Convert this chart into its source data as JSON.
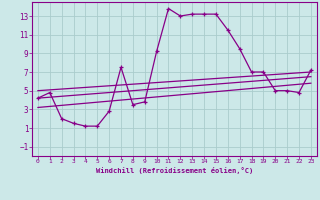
{
  "xlabel": "Windchill (Refroidissement éolien,°C)",
  "background_color": "#cce8e8",
  "grid_color": "#aacccc",
  "line_color": "#880088",
  "xlim": [
    -0.5,
    23.5
  ],
  "ylim": [
    -2.0,
    14.5
  ],
  "xticks": [
    0,
    1,
    2,
    3,
    4,
    5,
    6,
    7,
    8,
    9,
    10,
    11,
    12,
    13,
    14,
    15,
    16,
    17,
    18,
    19,
    20,
    21,
    22,
    23
  ],
  "yticks": [
    -1,
    1,
    3,
    5,
    7,
    9,
    11,
    13
  ],
  "main_x": [
    0,
    1,
    2,
    3,
    4,
    5,
    6,
    7,
    8,
    9,
    10,
    11,
    12,
    13,
    14,
    15,
    16,
    17,
    18,
    19,
    20,
    21,
    22,
    23
  ],
  "main_y": [
    4.2,
    4.8,
    2.0,
    1.5,
    1.2,
    1.2,
    2.8,
    7.5,
    3.5,
    3.8,
    9.2,
    13.8,
    13.0,
    13.2,
    13.2,
    13.2,
    11.5,
    9.5,
    7.0,
    7.0,
    5.0,
    5.0,
    4.8,
    7.2
  ],
  "line1_x": [
    0,
    23
  ],
  "line1_y": [
    5.0,
    7.0
  ],
  "line2_x": [
    0,
    23
  ],
  "line2_y": [
    4.2,
    6.5
  ],
  "line3_x": [
    0,
    23
  ],
  "line3_y": [
    3.2,
    5.8
  ]
}
